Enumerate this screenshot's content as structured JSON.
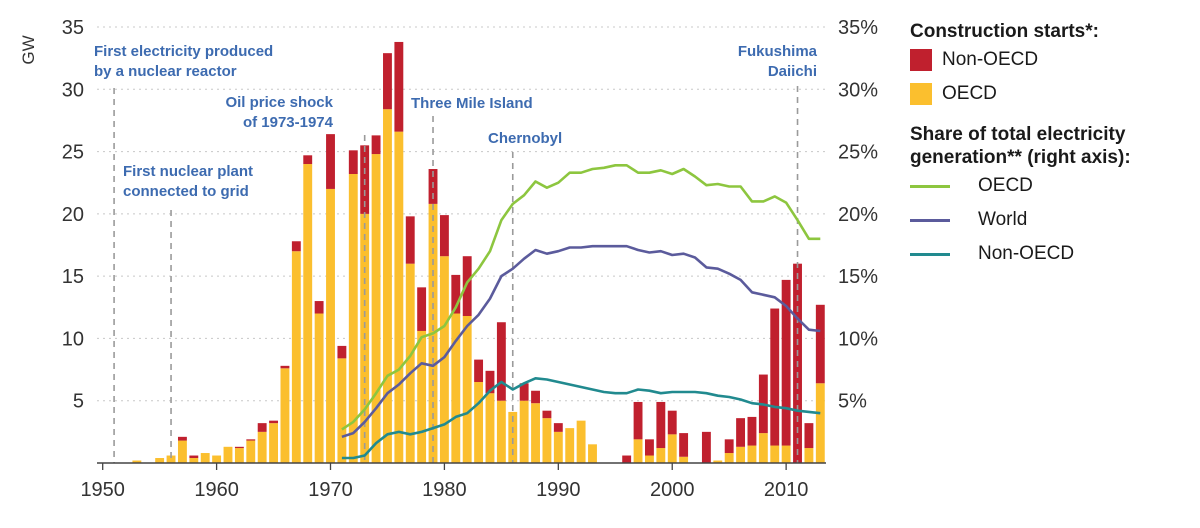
{
  "chart_data": {
    "type": "bar",
    "bars": {
      "years": [
        1951,
        1952,
        1953,
        1954,
        1955,
        1956,
        1957,
        1958,
        1959,
        1960,
        1961,
        1962,
        1963,
        1964,
        1965,
        1966,
        1967,
        1968,
        1969,
        1970,
        1971,
        1972,
        1973,
        1974,
        1975,
        1976,
        1977,
        1978,
        1979,
        1980,
        1981,
        1982,
        1983,
        1984,
        1985,
        1986,
        1987,
        1988,
        1989,
        1990,
        1991,
        1992,
        1993,
        1994,
        1995,
        1996,
        1997,
        1998,
        1999,
        2000,
        2001,
        2002,
        2003,
        2004,
        2005,
        2006,
        2007,
        2008,
        2009,
        2010,
        2011,
        2012,
        2013
      ],
      "series": [
        {
          "name": "OECD",
          "color": "#fbbf2e",
          "values": [
            0,
            0,
            0.2,
            0,
            0.4,
            0.6,
            1.8,
            0.4,
            0.8,
            0.6,
            1.3,
            1.2,
            1.8,
            2.5,
            3.2,
            7.6,
            17,
            24,
            12,
            22,
            8.4,
            23.2,
            20,
            24.8,
            28.4,
            26.6,
            16,
            10.6,
            20.8,
            16.6,
            12,
            11.8,
            6.5,
            5.6,
            5,
            4.1,
            5,
            4.8,
            3.6,
            2.5,
            2.8,
            3.4,
            1.5,
            0,
            0,
            0,
            1.9,
            0.6,
            1.2,
            2.3,
            0.5,
            0,
            0,
            0.2,
            0.8,
            1.3,
            1.4,
            2.4,
            1.4,
            1.4,
            0,
            1.2,
            6.4
          ]
        },
        {
          "name": "Non-OECD",
          "color": "#c0202e",
          "values": [
            0,
            0,
            0,
            0,
            0,
            0,
            0.3,
            0.2,
            0,
            0,
            0,
            0.1,
            0.1,
            0.7,
            0.2,
            0.2,
            0.8,
            0.7,
            1,
            4.4,
            1,
            1.9,
            5.5,
            1.5,
            4.5,
            7.2,
            3.8,
            3.5,
            2.8,
            3.3,
            3.1,
            4.8,
            1.8,
            1.8,
            6.3,
            0,
            1.4,
            1,
            0.6,
            0.7,
            0,
            0,
            0,
            0,
            0,
            0.6,
            3,
            1.3,
            3.7,
            1.9,
            1.9,
            0,
            2.5,
            0,
            1.1,
            2.3,
            2.3,
            4.7,
            11,
            13.3,
            16,
            2,
            6.3
          ]
        }
      ]
    },
    "lines": {
      "axis": "right",
      "series": [
        {
          "name": "OECD",
          "color": "#8dc63f",
          "x": [
            1971,
            1972,
            1973,
            1974,
            1975,
            1976,
            1977,
            1978,
            1979,
            1980,
            1981,
            1982,
            1983,
            1984,
            1985,
            1986,
            1987,
            1988,
            1989,
            1990,
            1991,
            1992,
            1993,
            1994,
            1995,
            1996,
            1997,
            1998,
            1999,
            2000,
            2001,
            2002,
            2003,
            2004,
            2005,
            2006,
            2007,
            2008,
            2009,
            2010,
            2011,
            2012,
            2013
          ],
          "values": [
            2.7,
            3.3,
            4.3,
            5.6,
            7.0,
            7.5,
            8.6,
            10.1,
            10.4,
            11.0,
            12.5,
            14.5,
            15.6,
            17.0,
            19.5,
            20.8,
            21.5,
            22.6,
            22.1,
            22.5,
            23.3,
            23.3,
            23.6,
            23.7,
            23.9,
            23.9,
            23.3,
            23.3,
            23.5,
            23.2,
            23.6,
            23.0,
            22.3,
            22.4,
            22.2,
            22.2,
            21.0,
            21.0,
            21.4,
            20.9,
            19.5,
            18.0,
            18.0
          ]
        },
        {
          "name": "World",
          "color": "#5b5b9c",
          "x": [
            1971,
            1972,
            1973,
            1974,
            1975,
            1976,
            1977,
            1978,
            1979,
            1980,
            1981,
            1982,
            1983,
            1984,
            1985,
            1986,
            1987,
            1988,
            1989,
            1990,
            1991,
            1992,
            1993,
            1994,
            1995,
            1996,
            1997,
            1998,
            1999,
            2000,
            2001,
            2002,
            2003,
            2004,
            2005,
            2006,
            2007,
            2008,
            2009,
            2010,
            2011,
            2012,
            2013
          ],
          "values": [
            2.1,
            2.4,
            3.3,
            4.4,
            5.6,
            6.3,
            7.2,
            8.0,
            7.8,
            8.5,
            9.8,
            11.0,
            11.9,
            13.2,
            15.0,
            15.6,
            16.4,
            17.1,
            16.8,
            17.0,
            17.3,
            17.3,
            17.4,
            17.4,
            17.4,
            17.4,
            17.1,
            16.9,
            17.0,
            16.7,
            16.8,
            16.5,
            15.7,
            15.6,
            15.2,
            14.7,
            13.7,
            13.5,
            13.3,
            12.6,
            11.6,
            10.7,
            10.6
          ]
        },
        {
          "name": "Non-OECD",
          "color": "#218a8f",
          "x": [
            1971,
            1972,
            1973,
            1974,
            1975,
            1976,
            1977,
            1978,
            1979,
            1980,
            1981,
            1982,
            1983,
            1984,
            1985,
            1986,
            1987,
            1988,
            1989,
            1990,
            1991,
            1992,
            1993,
            1994,
            1995,
            1996,
            1997,
            1998,
            1999,
            2000,
            2001,
            2002,
            2003,
            2004,
            2005,
            2006,
            2007,
            2008,
            2009,
            2010,
            2011,
            2012,
            2013
          ],
          "values": [
            0.4,
            0.4,
            0.6,
            1.6,
            2.3,
            2.5,
            2.3,
            2.5,
            2.8,
            3.1,
            3.7,
            4.0,
            4.8,
            5.8,
            6.5,
            5.9,
            6.4,
            6.8,
            6.7,
            6.5,
            6.3,
            6.1,
            5.9,
            5.7,
            5.6,
            5.6,
            5.9,
            5.8,
            5.6,
            5.7,
            5.7,
            5.7,
            5.6,
            5.4,
            5.3,
            5.1,
            4.8,
            4.7,
            4.5,
            4.4,
            4.2,
            4.1,
            4.0
          ]
        }
      ]
    },
    "events": [
      {
        "year": 1951,
        "lines": [
          "First electricity produced",
          "by a nuclear reactor"
        ]
      },
      {
        "year": 1956,
        "lines": [
          "First nuclear plant",
          "connected to grid"
        ]
      },
      {
        "year": 1973,
        "lines": [
          "Oil price shock",
          "of 1973-1974"
        ]
      },
      {
        "year": 1979,
        "lines": [
          "Three Mile Island"
        ]
      },
      {
        "year": 1986,
        "lines": [
          "Chernobyl"
        ]
      },
      {
        "year": 2011,
        "lines": [
          "Fukushima",
          "Daiichi"
        ]
      }
    ],
    "ylabel": "GW",
    "ylim": [
      0,
      35
    ],
    "y2lim": [
      0,
      35
    ],
    "y_ticks": [
      "35",
      "30",
      "25",
      "20",
      "15",
      "10",
      "5"
    ],
    "y2_ticks": [
      "35%",
      "30%",
      "25%",
      "20%",
      "15%",
      "10%",
      "5%"
    ],
    "x_ticks": [
      "1950",
      "1960",
      "1970",
      "1980",
      "1990",
      "2000",
      "2010"
    ],
    "grid": "y-dotted"
  },
  "legend": {
    "construction_title": "Construction starts*:",
    "non_oecd": "Non-OECD",
    "oecd": "OECD",
    "share_title_1": "Share of total electricity",
    "share_title_2": "generation** (right axis):",
    "line_oecd": "OECD",
    "line_world": "World",
    "line_non_oecd": "Non-OECD"
  }
}
